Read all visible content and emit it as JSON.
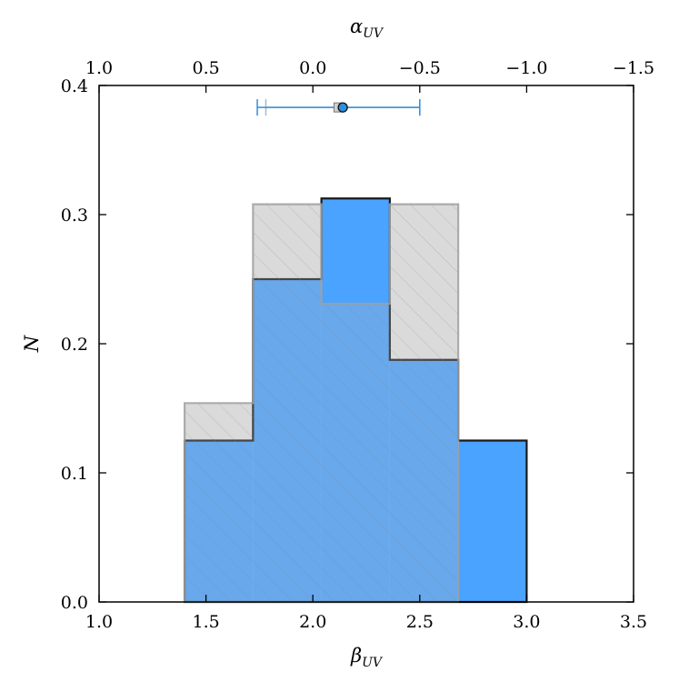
{
  "chart_data": {
    "type": "histogram",
    "xlabel": "β",
    "xlabel_sub": "UV",
    "top_xlabel": "α",
    "top_xlabel_sub": "UV",
    "ylabel": "N",
    "xlim": [
      1.0,
      3.5
    ],
    "ylim": [
      0.0,
      0.4
    ],
    "x_ticks": [
      "1.0",
      "1.5",
      "2.0",
      "2.5",
      "3.0",
      "3.5"
    ],
    "y_ticks": [
      "0.0",
      "0.1",
      "0.2",
      "0.3",
      "0.4"
    ],
    "top_ticks": [
      "1.0",
      "0.5",
      "0.0",
      "−0.5",
      "−1.0",
      "−1.5"
    ],
    "top_axis_relation": "alpha = -beta + 2 ... mapped linearly from beta 1.0→alpha 1.0 to beta 3.5→alpha -1.5",
    "series": [
      {
        "style": "gray-hatched",
        "color": "#e8e8e8",
        "edge": "#a0a0a0",
        "bins": [
          {
            "x0": 1.4,
            "x1": 1.72,
            "y": 0.154
          },
          {
            "x0": 1.72,
            "x1": 2.04,
            "y": 0.308
          },
          {
            "x0": 2.04,
            "x1": 2.36,
            "y": 0.231
          },
          {
            "x0": 2.36,
            "x1": 2.68,
            "y": 0.308
          }
        ]
      },
      {
        "style": "blue",
        "color": "#4aa3ff",
        "edge": "#1a1a1a",
        "bins": [
          {
            "x0": 1.4,
            "x1": 1.72,
            "y": 0.125
          },
          {
            "x0": 1.72,
            "x1": 2.04,
            "y": 0.25
          },
          {
            "x0": 2.04,
            "x1": 2.36,
            "y": 0.3125
          },
          {
            "x0": 2.36,
            "x1": 2.68,
            "y": 0.1875
          },
          {
            "x0": 2.68,
            "x1": 3.0,
            "y": 0.125
          }
        ]
      }
    ],
    "errorbars": [
      {
        "x": 2.12,
        "xlo": 1.78,
        "xhi": 2.5,
        "y": 0.383,
        "color": "#a8b8c8",
        "marker": "square-gray"
      },
      {
        "x": 2.14,
        "xlo": 1.74,
        "xhi": 2.5,
        "y": 0.383,
        "color": "#2f8fe0",
        "marker": "circle-blue"
      }
    ]
  }
}
